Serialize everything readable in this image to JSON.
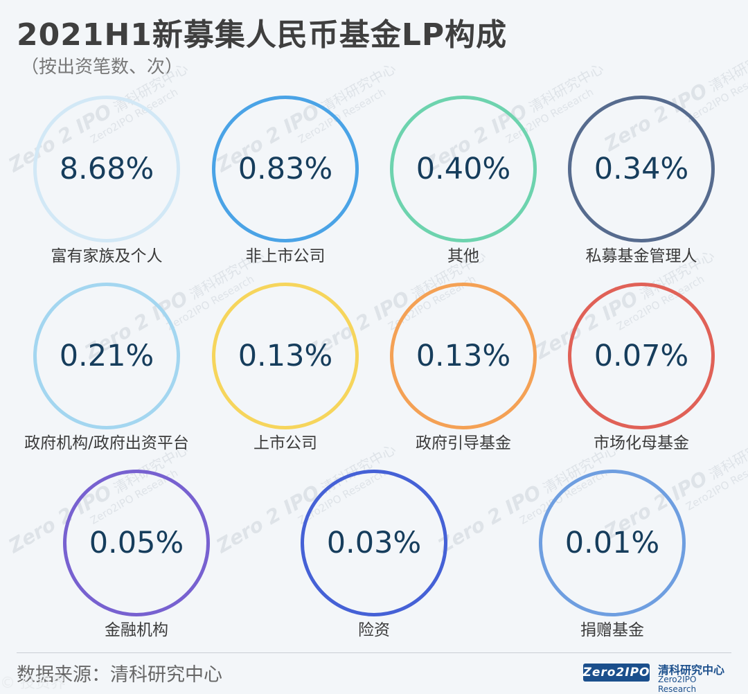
{
  "title": "2021H1新募集人民币基金LP构成",
  "subtitle": "（按出资笔数、次）",
  "source": "数据来源：清科研究中心",
  "logo": {
    "box_text": "Zero2IPO",
    "cn": "清科研究中心",
    "en": "Zero2IPO Research"
  },
  "watermark": {
    "zero": "Zero 2 IPO",
    "cn": "清科研究中心",
    "en": "Zero2IPO Research"
  },
  "corner_mark": "© 投资界",
  "chart_data": {
    "type": "table",
    "title": "2021H1新募集人民币基金LP构成",
    "subtitle": "（按出资笔数、次）",
    "unit": "%",
    "categories": [
      "富有家族及个人",
      "非上市公司",
      "其他",
      "私募基金管理人",
      "政府机构/政府出资平台",
      "上市公司",
      "政府引导基金",
      "市场化母基金",
      "金融机构",
      "险资",
      "捐赠基金"
    ],
    "values": [
      8.68,
      0.83,
      0.4,
      0.34,
      0.21,
      0.13,
      0.13,
      0.07,
      0.05,
      0.03,
      0.01
    ],
    "display_values": [
      "8.68%",
      "0.83%",
      "0.40%",
      "0.34%",
      "0.21%",
      "0.13%",
      "0.13%",
      "0.07%",
      "0.05%",
      "0.03%",
      "0.01%"
    ],
    "colors": [
      "#d2e8f6",
      "#4aa3e6",
      "#6dd3ae",
      "#566b8e",
      "#a3d6f0",
      "#f6d55c",
      "#f4a155",
      "#e06157",
      "#7761d0",
      "#4561d6",
      "#6e9ee0"
    ]
  }
}
